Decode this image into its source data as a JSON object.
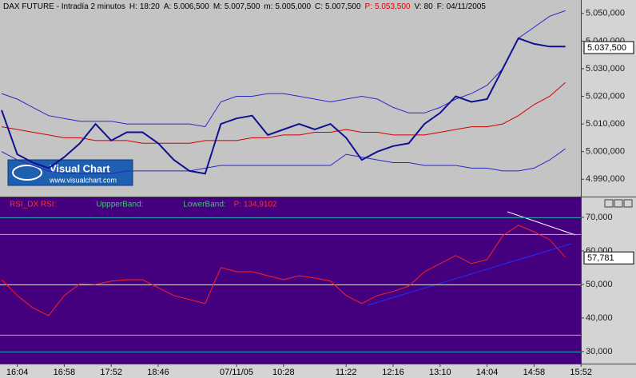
{
  "logo": {
    "title": "Visual Chart",
    "url": "www.visualchart.com"
  },
  "chart_data": [
    {
      "type": "line",
      "title": "DAX FUTURE - Intradía 2 minutos",
      "fields": [
        {
          "label": "H:",
          "value": "18:20"
        },
        {
          "label": "A:",
          "value": "5.006,500"
        },
        {
          "label": "M:",
          "value": "5.007,500"
        },
        {
          "label": "m:",
          "value": "5.005,000"
        },
        {
          "label": "C:",
          "value": "5.007,500"
        },
        {
          "label": "P:",
          "value": "5.053,500",
          "color": "#e00000"
        },
        {
          "label": "V:",
          "value": "80"
        },
        {
          "label": "F:",
          "value": "04/11/2005"
        }
      ],
      "ylim": [
        4984,
        5054
      ],
      "yticks": [
        {
          "value": 4990,
          "label": "4.990,000"
        },
        {
          "value": 5000,
          "label": "5.000,000"
        },
        {
          "value": 5010,
          "label": "5.010,000"
        },
        {
          "value": 5020,
          "label": "5.020,000"
        },
        {
          "value": 5030,
          "label": "5.030,000"
        },
        {
          "value": 5040,
          "label": "5.040,000"
        },
        {
          "value": 5050,
          "label": "5.050,000"
        }
      ],
      "last": {
        "value": 5037.5,
        "label": "5.037,500"
      },
      "series": [
        {
          "color": "#2828c8",
          "width": 1,
          "values": [
            5021,
            5019,
            5016,
            5013,
            5012,
            5011,
            5011,
            5011,
            5010,
            5010,
            5010,
            5010,
            5010,
            5009,
            5018,
            5020,
            5020,
            5021,
            5021,
            5020,
            5019,
            5018,
            5019,
            5020,
            5019,
            5016,
            5014,
            5014,
            5016,
            5019,
            5021,
            5024,
            5030,
            5041,
            5045,
            5049,
            5051,
            null
          ]
        },
        {
          "color": "#2828c8",
          "width": 1,
          "values": [
            5000,
            4997,
            4995,
            4993,
            4992,
            4992,
            4992,
            4992,
            4993,
            4993,
            4993,
            4993,
            4993,
            4994,
            4995,
            4995,
            4995,
            4995,
            4995,
            4995,
            4995,
            4995,
            4999,
            4998,
            4997,
            4996,
            4996,
            4995,
            4995,
            4995,
            4994,
            4994,
            4993,
            4993,
            4994,
            4997,
            5001,
            null
          ]
        },
        {
          "color": "#d00000",
          "width": 1,
          "values": [
            5009,
            5008,
            5007,
            5006,
            5005,
            5005,
            5004,
            5004,
            5004,
            5003,
            5003,
            5003,
            5003,
            5004,
            5004,
            5004,
            5005,
            5005,
            5006,
            5006,
            5007,
            5007,
            5008,
            5007,
            5007,
            5006,
            5006,
            5006,
            5007,
            5008,
            5009,
            5009,
            5010,
            5013,
            5017,
            5020,
            5025,
            null
          ]
        },
        {
          "color": "#101090",
          "width": 2,
          "values": [
            5015,
            4999,
            4996,
            4994,
            4998,
            5003,
            5010,
            5004,
            5007,
            5007,
            5003,
            4997,
            4993,
            4992,
            5010,
            5012,
            5013,
            5006,
            5008,
            5010,
            5008,
            5010,
            5005,
            4997,
            5000,
            5002,
            5003,
            5010,
            5014,
            5020,
            5018,
            5019,
            5030,
            5041,
            5039,
            5038,
            5038,
            null
          ]
        }
      ]
    },
    {
      "type": "line",
      "categories": [
        null,
        "16:04",
        null,
        null,
        "16:58",
        null,
        null,
        "17:52",
        null,
        null,
        "18:46",
        null,
        null,
        null,
        null,
        "07/11/05",
        null,
        null,
        "10:28",
        null,
        null,
        null,
        "11:22",
        null,
        null,
        "12:16",
        null,
        null,
        "13:10",
        null,
        null,
        "14:04",
        null,
        null,
        "14:58",
        null,
        null,
        "15:52"
      ],
      "ylim": [
        26.4,
        75.7
      ],
      "yticks": [
        {
          "value": 30,
          "label": "30,000"
        },
        {
          "value": 40,
          "label": "40,000"
        },
        {
          "value": 50,
          "label": "50,000"
        },
        {
          "value": 60,
          "label": "60,000"
        },
        {
          "value": 70,
          "label": "70,000"
        }
      ],
      "hlines": [
        {
          "value": 70,
          "color": "#20b0b0"
        },
        {
          "value": 65,
          "color": "#d0c020"
        },
        {
          "value": 50,
          "color": "#e8e8e8"
        },
        {
          "value": 35,
          "color": "#d0c020"
        },
        {
          "value": 30,
          "color": "#20b0b0"
        }
      ],
      "legend": [
        {
          "text": "RSI_DX RSI:",
          "color": "#ff3030"
        },
        {
          "text": "UppperBand:",
          "color": "#30d060"
        },
        {
          "text": "LowerBand:",
          "color": "#30d060"
        },
        {
          "text": "P: 134,9102",
          "color": "#ff3030"
        }
      ],
      "last": {
        "value": 57.781,
        "label": "57,781"
      },
      "series": [
        {
          "name": "RSI_DX RSI:",
          "color": "#ff2020",
          "values": [
            51.4,
            46.7,
            43,
            40.7,
            46.7,
            50.2,
            50,
            51,
            51.4,
            51.4,
            49,
            46.7,
            45.5,
            44.3,
            55,
            53.8,
            53.8,
            52.6,
            51.4,
            52.6,
            51.9,
            51,
            46.7,
            44.3,
            46.7,
            47.9,
            49.5,
            53.8,
            56.2,
            58.6,
            56.2,
            57.4,
            64.5,
            67.6,
            65.7,
            63.3,
            58.1,
            null
          ]
        }
      ]
    }
  ]
}
